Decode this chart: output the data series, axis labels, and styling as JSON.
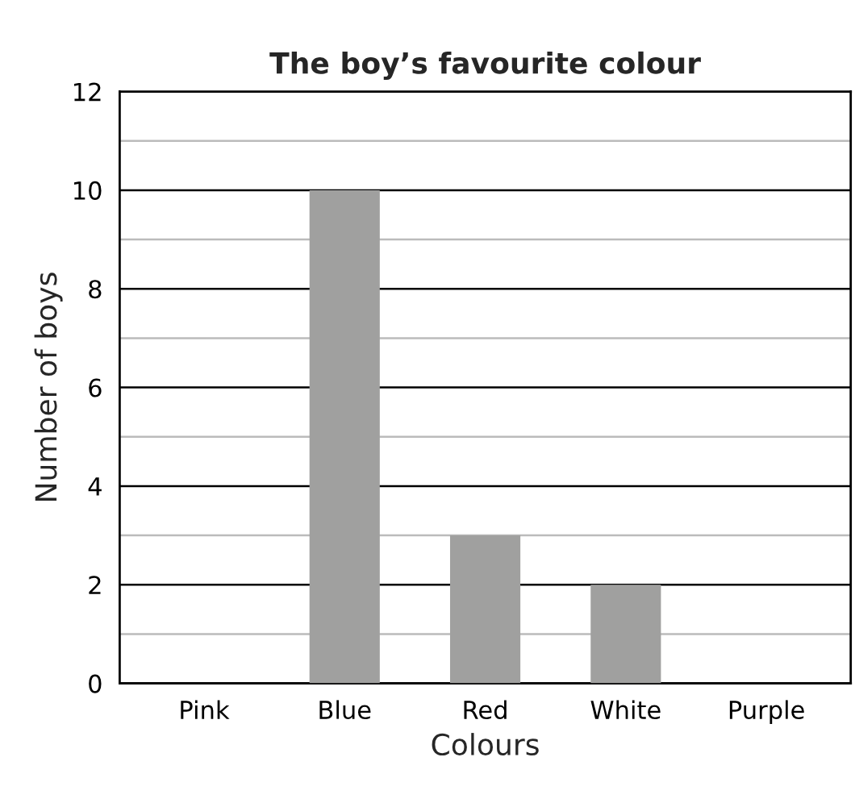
{
  "chart_data": {
    "type": "bar",
    "title": "The boy’s favourite colour",
    "xlabel": "Colours",
    "ylabel": "Number of boys",
    "categories": [
      "Pink",
      "Blue",
      "Red",
      "White",
      "Purple"
    ],
    "values": [
      0,
      10,
      3,
      2,
      0
    ],
    "color": "#a0a09f",
    "ylim": [
      0,
      12
    ],
    "yticks": [
      0,
      {
        "value": 1,
        "label": null
      },
      2,
      {
        "value": 3,
        "label": null
      },
      4,
      {
        "value": 5,
        "label": null
      },
      6,
      {
        "value": 7,
        "label": null
      },
      8,
      {
        "value": 9,
        "label": null
      },
      10,
      {
        "value": 11,
        "label": null
      },
      12
    ],
    "grid": "y"
  }
}
